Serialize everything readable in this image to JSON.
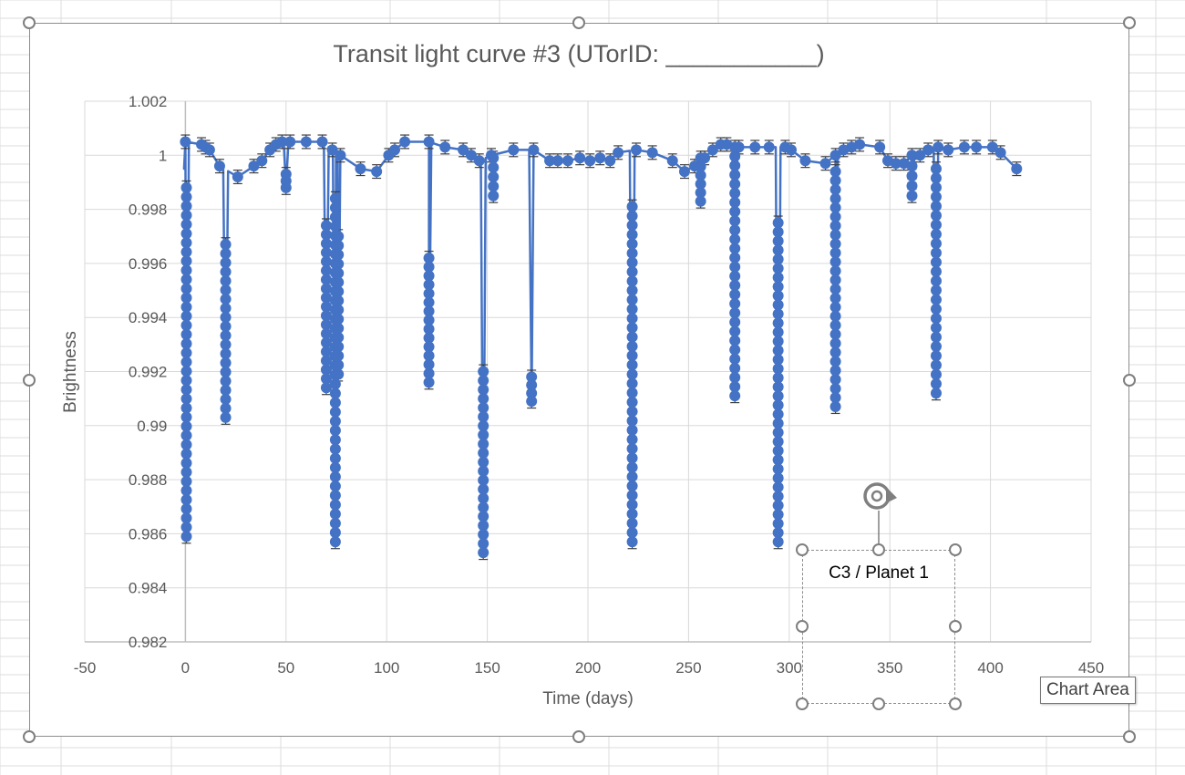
{
  "chart_data": {
    "type": "scatter",
    "title": "Transit light curve #3 (UTorID: ___________)",
    "xlabel": "Time (days)",
    "ylabel": "Brightness",
    "xlim": [
      -50,
      450
    ],
    "ylim": [
      0.982,
      1.002
    ],
    "x_ticks": [
      -50,
      0,
      50,
      100,
      150,
      200,
      250,
      300,
      350,
      400,
      450
    ],
    "y_ticks": [
      0.982,
      0.984,
      0.986,
      0.988,
      0.99,
      0.992,
      0.994,
      0.996,
      0.998,
      1,
      1.002
    ],
    "x_tick_labels": [
      "-50",
      "0",
      "50",
      "100",
      "150",
      "200",
      "250",
      "300",
      "350",
      "400",
      "450"
    ],
    "y_tick_labels": [
      "0.982",
      "0.984",
      "0.986",
      "0.988",
      "0.99",
      "0.992",
      "0.994",
      "0.996",
      "0.998",
      "1",
      "1.002"
    ],
    "grid": true,
    "markers_connected_by_smooth_line": true,
    "error_bars": true,
    "error_bar_size": 0.00025,
    "series_color": "#4472c4",
    "error_bar_color": "#404040",
    "baseline_points": [
      [
        0,
        1.0005
      ],
      [
        8,
        1.0004
      ],
      [
        10,
        1.0003
      ],
      [
        12,
        1.0002
      ],
      [
        17,
        0.9996
      ],
      [
        26,
        0.9992
      ],
      [
        34,
        0.9996
      ],
      [
        38,
        0.9998
      ],
      [
        42,
        1.0002
      ],
      [
        45,
        1.0004
      ],
      [
        48,
        1.0005
      ],
      [
        52,
        1.0005
      ],
      [
        60,
        1.0005
      ],
      [
        68,
        1.0005
      ],
      [
        73,
        1.0002
      ],
      [
        77,
        1.0
      ],
      [
        87,
        0.9995
      ],
      [
        95,
        0.9994
      ],
      [
        101,
        1.0
      ],
      [
        104,
        1.0002
      ],
      [
        109,
        1.0005
      ],
      [
        121,
        1.0005
      ],
      [
        129,
        1.0003
      ],
      [
        138,
        1.0002
      ],
      [
        142,
        1.0
      ],
      [
        146,
        0.9998
      ],
      [
        152,
        1.0
      ],
      [
        163,
        1.0002
      ],
      [
        173,
        1.0002
      ],
      [
        181,
        0.9998
      ],
      [
        185,
        0.9998
      ],
      [
        190,
        0.9998
      ],
      [
        196,
        0.9999
      ],
      [
        201,
        0.9998
      ],
      [
        206,
        0.9999
      ],
      [
        211,
        0.9998
      ],
      [
        215,
        1.0001
      ],
      [
        224,
        1.0002
      ],
      [
        232,
        1.0001
      ],
      [
        242,
        0.9998
      ],
      [
        248,
        0.9994
      ],
      [
        253,
        0.9996
      ],
      [
        258,
        0.9999
      ],
      [
        262,
        1.0002
      ],
      [
        266,
        1.0004
      ],
      [
        269,
        1.0004
      ],
      [
        275,
        1.0003
      ],
      [
        283,
        1.0003
      ],
      [
        290,
        1.0003
      ],
      [
        298,
        1.0003
      ],
      [
        301,
        1.0002
      ],
      [
        308,
        0.9998
      ],
      [
        318,
        0.9997
      ],
      [
        323,
        1.0
      ],
      [
        327,
        1.0002
      ],
      [
        331,
        1.0003
      ],
      [
        335,
        1.0004
      ],
      [
        345,
        1.0003
      ],
      [
        349,
        0.9998
      ],
      [
        353,
        0.9997
      ],
      [
        357,
        0.9997
      ],
      [
        361,
        1.0
      ],
      [
        365,
        1.0
      ],
      [
        369,
        1.0002
      ],
      [
        374,
        1.0003
      ],
      [
        379,
        1.0002
      ],
      [
        387,
        1.0003
      ],
      [
        393,
        1.0003
      ],
      [
        401,
        1.0003
      ],
      [
        405,
        1.0001
      ],
      [
        413,
        0.9995
      ]
    ],
    "dips": [
      {
        "x": 0.5,
        "min": 0.9859,
        "max": 0.9988
      },
      {
        "x": 20,
        "min": 0.9903,
        "max": 0.9967
      },
      {
        "x": 50,
        "min": 0.9988,
        "max": 0.9993
      },
      {
        "x": 70,
        "min": 0.9914,
        "max": 0.9974
      },
      {
        "x": 74.5,
        "min": 0.9857,
        "max": 0.9984
      },
      {
        "x": 76,
        "min": 0.9919,
        "max": 0.997
      },
      {
        "x": 121,
        "min": 0.9916,
        "max": 0.9962
      },
      {
        "x": 148,
        "min": 0.9853,
        "max": 0.992
      },
      {
        "x": 153,
        "min": 0.9985,
        "max": 0.9999
      },
      {
        "x": 172,
        "min": 0.9909,
        "max": 0.9918
      },
      {
        "x": 222,
        "min": 0.9857,
        "max": 0.9981
      },
      {
        "x": 256,
        "min": 0.9983,
        "max": 0.9999
      },
      {
        "x": 273,
        "min": 0.9911,
        "max": 1.0003
      },
      {
        "x": 294.5,
        "min": 0.9857,
        "max": 0.9975
      },
      {
        "x": 323,
        "min": 0.9907,
        "max": 0.9994
      },
      {
        "x": 361,
        "min": 0.9985,
        "max": 0.9996
      },
      {
        "x": 373,
        "min": 0.9912,
        "max": 0.9995
      }
    ]
  },
  "textbox": {
    "label": "C3 / Planet 1"
  },
  "tooltip": {
    "label": "Chart Area"
  }
}
